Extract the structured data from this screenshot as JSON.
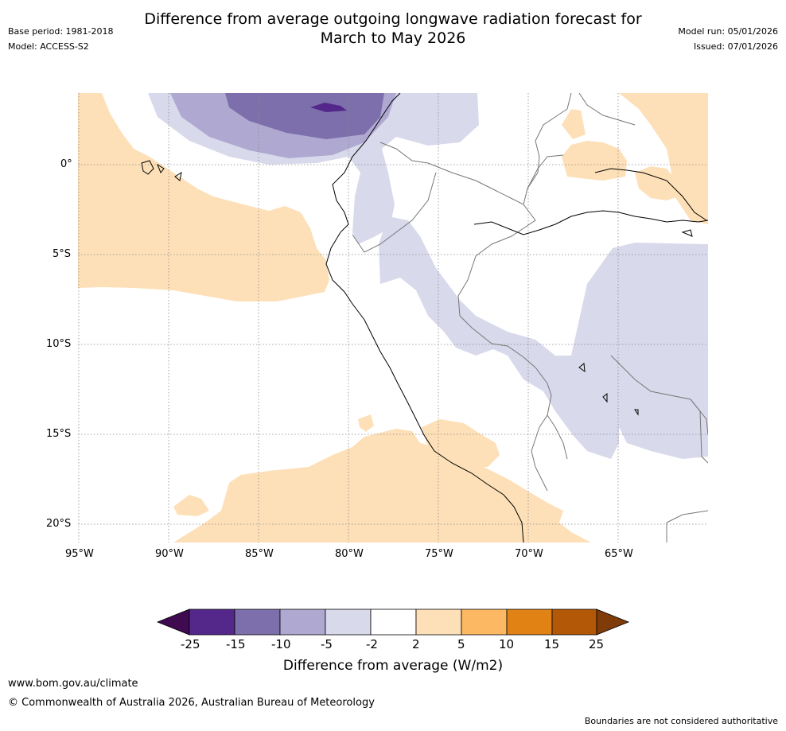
{
  "header": {
    "title_line1": "Difference from average outgoing longwave radiation forecast for",
    "title_line2": "March to May 2026",
    "base_period": "Base period: 1981-2018",
    "model": "Model: ACCESS-S2",
    "model_run": "Model run: 05/01/2026",
    "issued": "Issued: 07/01/2026"
  },
  "map": {
    "lat_labels": [
      "0°",
      "5°S",
      "10°S",
      "15°S",
      "20°S"
    ],
    "lon_labels": [
      "95°W",
      "90°W",
      "85°W",
      "80°W",
      "75°W",
      "70°W",
      "65°W"
    ]
  },
  "colorbar": {
    "colors": {
      "lt_minus25": "#3f0a4f",
      "m25_m15": "#54288a",
      "m15_m10": "#7d6fab",
      "m10_m5": "#afa9d2",
      "m5_m2": "#d9d9ec",
      "m2_2": "#ffffff",
      "p2_5": "#fde0b7",
      "p5_10": "#fdb863",
      "p10_15": "#e08214",
      "p15_25": "#b35806",
      "gt_25": "#7f3b08"
    },
    "ticks": [
      "-25",
      "-15",
      "-10",
      "-5",
      "-2",
      "2",
      "5",
      "10",
      "15",
      "25"
    ],
    "label": "Difference from average (W/m2)"
  },
  "footer": {
    "website": "www.bom.gov.au/climate",
    "copyright": "© Commonwealth of Australia 2026, Australian Bureau of Meteorology",
    "disclaimer": "Boundaries are not considered authoritative"
  }
}
